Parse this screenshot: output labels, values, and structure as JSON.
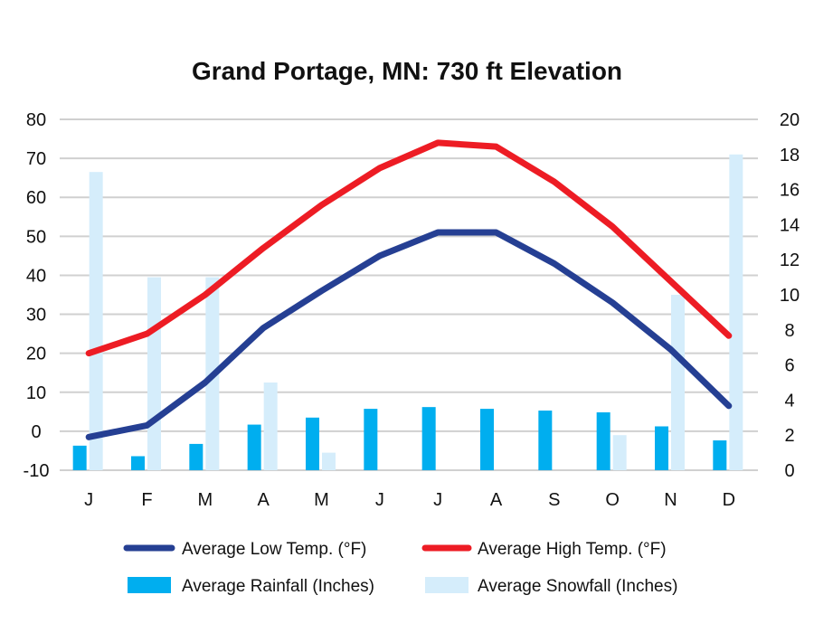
{
  "chart_data": {
    "type": "bar",
    "title": "Grand Portage, MN: 730 ft Elevation",
    "categories": [
      "J",
      "F",
      "M",
      "A",
      "M",
      "J",
      "J",
      "A",
      "S",
      "O",
      "N",
      "D"
    ],
    "y_left": {
      "ylim": [
        -10,
        80
      ],
      "ticks": [
        "80",
        "70",
        "60",
        "50",
        "40",
        "30",
        "20",
        "10",
        "0",
        "-10"
      ]
    },
    "y_right": {
      "ylim": [
        0,
        20
      ],
      "ticks": [
        "20",
        "18",
        "16",
        "14",
        "12",
        "10",
        "8",
        "6",
        "4",
        "2",
        "0"
      ]
    },
    "series": [
      {
        "name": "Average Low Temp. (°F)",
        "type": "line",
        "axis": "left",
        "color": "#253f93",
        "values": [
          -1.5,
          1.5,
          12.5,
          26.5,
          36,
          45,
          51,
          51,
          43,
          33,
          21,
          6.5
        ]
      },
      {
        "name": "Average High Temp. (°F)",
        "type": "line",
        "axis": "left",
        "color": "#ed1c24",
        "values": [
          20,
          25,
          35,
          47,
          58,
          67.5,
          74,
          73,
          64,
          52.5,
          38.5,
          24.5
        ]
      },
      {
        "name": "Average Rainfall (Inches)",
        "type": "bar",
        "axis": "right",
        "color": "#00aeef",
        "values": [
          1.4,
          0.8,
          1.5,
          2.6,
          3.0,
          3.5,
          3.6,
          3.5,
          3.4,
          3.3,
          2.5,
          1.7
        ]
      },
      {
        "name": "Average Snowfall (Inches)",
        "type": "bar",
        "axis": "right",
        "color": "#d5edfb",
        "values": [
          17,
          11,
          11,
          5,
          1,
          0,
          0,
          0,
          0,
          2,
          10,
          18
        ]
      }
    ],
    "grid": true,
    "legend_position": "bottom"
  }
}
